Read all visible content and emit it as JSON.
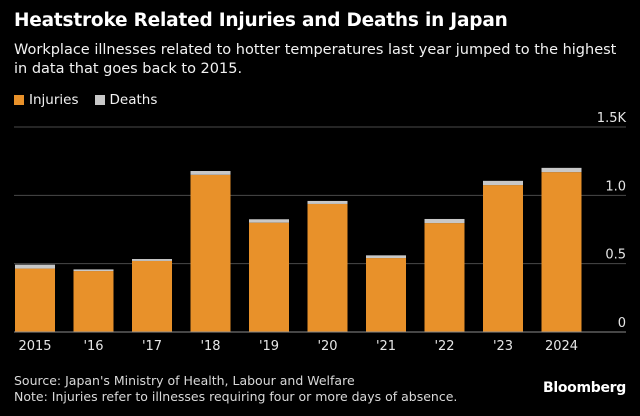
{
  "header": {
    "title": "Heatstroke Related Injuries and Deaths in Japan",
    "subtitle": "Workplace illnesses related to hotter temperatures last year jumped to the highest in data that goes back to 2015."
  },
  "footer": {
    "source": "Source: Japan's Ministry of Health, Labour and Welfare",
    "note": "Note: Injuries refer to illnesses requiring four or more days of absence.",
    "brand": "Bloomberg"
  },
  "colors": {
    "injuries": "#e8912a",
    "deaths": "#c8c8c8",
    "grid": "#4a4a4a",
    "background": "#000000"
  },
  "chart_data": {
    "type": "bar",
    "stacked": true,
    "categories": [
      "2015",
      "'16",
      "'17",
      "'18",
      "'19",
      "'20",
      "'21",
      "'22",
      "'23",
      "2024"
    ],
    "series": [
      {
        "name": "Injuries",
        "values": [
          0.464,
          0.446,
          0.52,
          1.15,
          0.8,
          0.937,
          0.541,
          0.797,
          1.075,
          1.17
        ]
      },
      {
        "name": "Deaths",
        "values": [
          0.029,
          0.012,
          0.014,
          0.028,
          0.025,
          0.022,
          0.02,
          0.03,
          0.031,
          0.031
        ]
      }
    ],
    "yticks": [
      {
        "value": 0,
        "label": "0"
      },
      {
        "value": 0.5,
        "label": "0.5"
      },
      {
        "value": 1.0,
        "label": "1.0"
      },
      {
        "value": 1.5,
        "label": "1.5K"
      }
    ],
    "ylim": [
      0,
      1.5
    ],
    "grid": true,
    "legend_position": "top-left"
  }
}
